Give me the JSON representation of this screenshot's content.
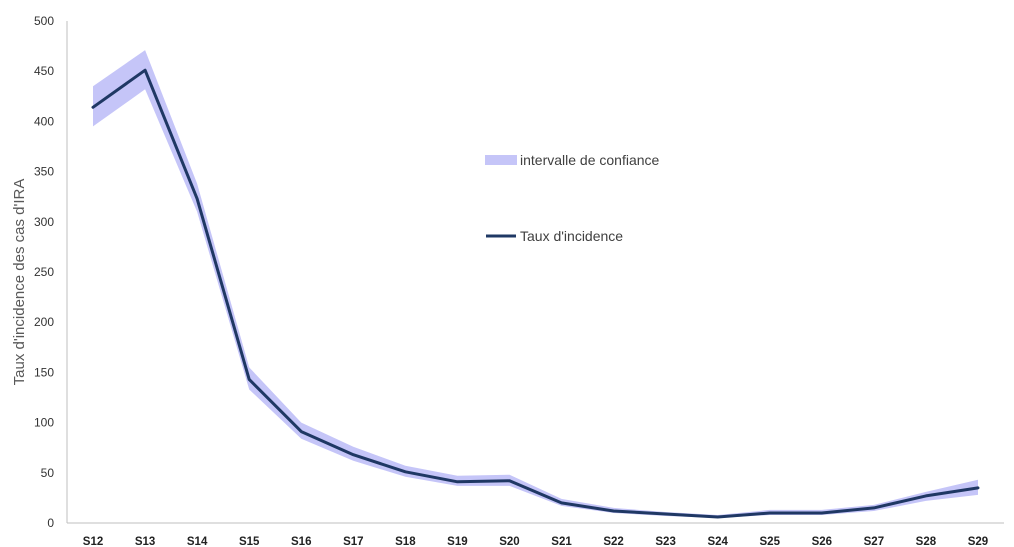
{
  "chart_data": {
    "type": "line",
    "ylabel": "Taux d'incidence des cas d'IRA",
    "xlabel": "",
    "ylim": [
      0,
      500
    ],
    "yticks": [
      0,
      50,
      100,
      150,
      200,
      250,
      300,
      350,
      400,
      450,
      500
    ],
    "categories": [
      "S12",
      "S13",
      "S14",
      "S15",
      "S16",
      "S17",
      "S18",
      "S19",
      "S20",
      "S21",
      "S22",
      "S23",
      "S24",
      "S25",
      "S26",
      "S27",
      "S28",
      "S29"
    ],
    "series": [
      {
        "name": "Taux d'incidence",
        "kind": "line",
        "color": "#1f3864",
        "values": [
          414,
          451,
          323,
          143,
          91,
          68,
          51,
          41,
          42,
          20,
          12,
          9,
          6,
          10,
          10,
          15,
          27,
          35
        ]
      },
      {
        "name": "intervalle de confiance",
        "kind": "band",
        "color": "#c5c5f8",
        "lower": [
          395,
          432,
          310,
          133,
          84,
          62,
          46,
          37,
          37,
          17,
          10,
          7,
          5,
          8,
          8,
          12,
          22,
          28
        ],
        "upper": [
          435,
          471,
          338,
          155,
          100,
          76,
          57,
          47,
          48,
          24,
          15,
          11,
          8,
          13,
          13,
          18,
          31,
          43
        ]
      }
    ],
    "legend": {
      "placement": "center-right",
      "items": [
        {
          "label": "intervalle de confiance",
          "marker": "band",
          "color": "#c5c5f8"
        },
        {
          "label": "Taux d'incidence",
          "marker": "line",
          "color": "#1f3864"
        }
      ]
    },
    "grid": false
  }
}
